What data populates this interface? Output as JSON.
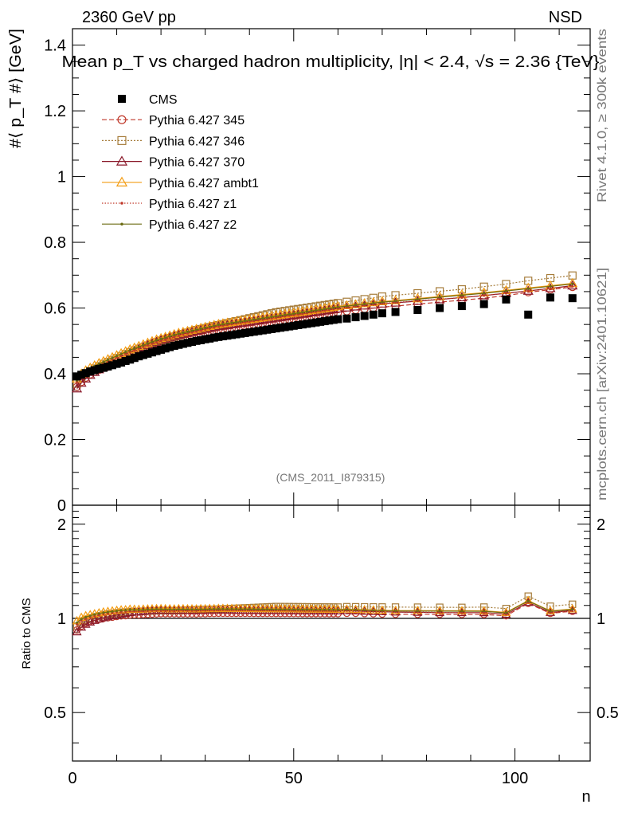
{
  "header": {
    "left": "2360 GeV pp",
    "right": "NSD",
    "title": "Mean p_T vs charged hadron multiplicity, |η| < 2.4, √s = 2.36 {TeV}",
    "analysis_id": "(CMS_2011_I879315)",
    "side_label_top": "Rivet 4.1.0, ≥ 300k events",
    "side_label_bottom": "mcplots.cern.ch [arXiv:2401.10621]"
  },
  "chart_data": [
    {
      "id": "main",
      "type": "scatter",
      "ylabel": "#⟨ p_T #⟩ [GeV]",
      "ylim": [
        0,
        1.45
      ],
      "xlim": [
        0,
        117
      ],
      "yticks": [
        0,
        0.2,
        0.4,
        0.6,
        0.8,
        1,
        1.2,
        1.4
      ],
      "ytick_labels": [
        "0",
        "0.2",
        "0.4",
        "0.6",
        "0.8",
        "1",
        "1.2",
        "1.4"
      ],
      "x": [
        1,
        2,
        3,
        4,
        5,
        6,
        7,
        8,
        9,
        10,
        11,
        12,
        13,
        14,
        15,
        16,
        17,
        18,
        19,
        20,
        21,
        22,
        23,
        24,
        25,
        26,
        27,
        28,
        29,
        30,
        31,
        32,
        33,
        34,
        35,
        36,
        37,
        38,
        39,
        40,
        41,
        42,
        43,
        44,
        45,
        46,
        47,
        48,
        49,
        50,
        51,
        52,
        53,
        54,
        55,
        56,
        57,
        58,
        59,
        60,
        62,
        64,
        66,
        68,
        70,
        73,
        78,
        83,
        88,
        93,
        98,
        103,
        108,
        113
      ],
      "series": [
        {
          "name": "CMS",
          "style": "cms",
          "values": [
            0.392,
            0.397,
            0.402,
            0.407,
            0.411,
            0.415,
            0.418,
            0.422,
            0.426,
            0.43,
            0.434,
            0.439,
            0.443,
            0.448,
            0.453,
            0.457,
            0.461,
            0.465,
            0.469,
            0.473,
            0.477,
            0.481,
            0.485,
            0.488,
            0.491,
            0.494,
            0.497,
            0.5,
            0.502,
            0.505,
            0.507,
            0.51,
            0.512,
            0.514,
            0.516,
            0.518,
            0.52,
            0.522,
            0.524,
            0.526,
            0.528,
            0.53,
            0.532,
            0.534,
            0.536,
            0.538,
            0.54,
            0.542,
            0.544,
            0.546,
            0.548,
            0.55,
            0.552,
            0.554,
            0.556,
            0.558,
            0.56,
            0.562,
            0.564,
            0.566,
            0.568,
            0.572,
            0.576,
            0.58,
            0.584,
            0.588,
            0.594,
            0.6,
            0.606,
            0.612,
            0.626,
            0.58,
            0.632,
            0.63
          ]
        },
        {
          "name": "Pythia 6.427 345",
          "style": "p345",
          "values": [
            0.36,
            0.375,
            0.388,
            0.398,
            0.406,
            0.412,
            0.418,
            0.424,
            0.43,
            0.436,
            0.442,
            0.448,
            0.454,
            0.46,
            0.465,
            0.47,
            0.475,
            0.48,
            0.485,
            0.49,
            0.494,
            0.498,
            0.502,
            0.505,
            0.508,
            0.511,
            0.514,
            0.517,
            0.52,
            0.523,
            0.526,
            0.529,
            0.532,
            0.534,
            0.536,
            0.538,
            0.54,
            0.542,
            0.544,
            0.546,
            0.548,
            0.55,
            0.552,
            0.554,
            0.556,
            0.558,
            0.56,
            0.562,
            0.564,
            0.566,
            0.568,
            0.57,
            0.572,
            0.574,
            0.576,
            0.578,
            0.58,
            0.582,
            0.584,
            0.586,
            0.59,
            0.594,
            0.597,
            0.6,
            0.603,
            0.606,
            0.612,
            0.618,
            0.624,
            0.63,
            0.638,
            0.648,
            0.656,
            0.664
          ]
        },
        {
          "name": "Pythia 6.427 346",
          "style": "p346",
          "values": [
            0.37,
            0.386,
            0.398,
            0.408,
            0.416,
            0.423,
            0.43,
            0.436,
            0.442,
            0.448,
            0.454,
            0.46,
            0.466,
            0.471,
            0.476,
            0.481,
            0.486,
            0.491,
            0.496,
            0.501,
            0.505,
            0.509,
            0.513,
            0.517,
            0.521,
            0.525,
            0.529,
            0.533,
            0.536,
            0.539,
            0.542,
            0.545,
            0.548,
            0.551,
            0.554,
            0.557,
            0.56,
            0.563,
            0.566,
            0.569,
            0.572,
            0.575,
            0.578,
            0.581,
            0.584,
            0.587,
            0.589,
            0.591,
            0.593,
            0.595,
            0.597,
            0.599,
            0.601,
            0.603,
            0.605,
            0.607,
            0.609,
            0.611,
            0.613,
            0.615,
            0.619,
            0.623,
            0.627,
            0.631,
            0.635,
            0.639,
            0.645,
            0.651,
            0.657,
            0.665,
            0.673,
            0.683,
            0.691,
            0.699
          ]
        },
        {
          "name": "Pythia 6.427 370",
          "style": "p370",
          "values": [
            0.355,
            0.372,
            0.385,
            0.396,
            0.405,
            0.413,
            0.42,
            0.427,
            0.434,
            0.441,
            0.448,
            0.455,
            0.462,
            0.469,
            0.475,
            0.481,
            0.487,
            0.492,
            0.497,
            0.502,
            0.506,
            0.51,
            0.514,
            0.518,
            0.521,
            0.524,
            0.527,
            0.53,
            0.533,
            0.536,
            0.539,
            0.542,
            0.544,
            0.546,
            0.548,
            0.55,
            0.552,
            0.554,
            0.556,
            0.558,
            0.56,
            0.562,
            0.564,
            0.566,
            0.568,
            0.57,
            0.572,
            0.574,
            0.576,
            0.578,
            0.58,
            0.582,
            0.584,
            0.586,
            0.588,
            0.59,
            0.592,
            0.594,
            0.596,
            0.598,
            0.601,
            0.604,
            0.607,
            0.61,
            0.613,
            0.616,
            0.621,
            0.626,
            0.632,
            0.638,
            0.645,
            0.652,
            0.66,
            0.668
          ]
        },
        {
          "name": "Pythia 6.427 ambt1",
          "style": "ambt1",
          "values": [
            0.385,
            0.4,
            0.41,
            0.418,
            0.425,
            0.432,
            0.438,
            0.444,
            0.45,
            0.456,
            0.462,
            0.468,
            0.474,
            0.479,
            0.484,
            0.489,
            0.494,
            0.499,
            0.504,
            0.508,
            0.512,
            0.516,
            0.52,
            0.524,
            0.527,
            0.53,
            0.533,
            0.536,
            0.539,
            0.542,
            0.545,
            0.548,
            0.551,
            0.553,
            0.555,
            0.557,
            0.559,
            0.561,
            0.563,
            0.565,
            0.567,
            0.569,
            0.571,
            0.573,
            0.575,
            0.577,
            0.579,
            0.581,
            0.583,
            0.585,
            0.587,
            0.589,
            0.591,
            0.593,
            0.595,
            0.597,
            0.599,
            0.601,
            0.603,
            0.605,
            0.608,
            0.611,
            0.614,
            0.617,
            0.62,
            0.623,
            0.629,
            0.635,
            0.641,
            0.647,
            0.654,
            0.661,
            0.668,
            0.675
          ]
        },
        {
          "name": "Pythia 6.427 z1",
          "style": "z1",
          "values": [
            0.375,
            0.39,
            0.401,
            0.41,
            0.418,
            0.425,
            0.431,
            0.437,
            0.443,
            0.449,
            0.455,
            0.461,
            0.467,
            0.472,
            0.477,
            0.482,
            0.487,
            0.492,
            0.496,
            0.5,
            0.504,
            0.508,
            0.512,
            0.516,
            0.52,
            0.523,
            0.526,
            0.529,
            0.532,
            0.535,
            0.538,
            0.541,
            0.544,
            0.547,
            0.549,
            0.551,
            0.553,
            0.555,
            0.557,
            0.559,
            0.561,
            0.563,
            0.565,
            0.567,
            0.569,
            0.571,
            0.573,
            0.575,
            0.577,
            0.579,
            0.581,
            0.583,
            0.585,
            0.587,
            0.589,
            0.591,
            0.593,
            0.595,
            0.597,
            0.599,
            0.602,
            0.605,
            0.608,
            0.611,
            0.614,
            0.617,
            0.622,
            0.627,
            0.632,
            0.638,
            0.645,
            0.652,
            0.659,
            0.666
          ]
        },
        {
          "name": "Pythia 6.427 z2",
          "style": "z2",
          "values": [
            0.38,
            0.395,
            0.406,
            0.415,
            0.423,
            0.43,
            0.436,
            0.442,
            0.448,
            0.454,
            0.46,
            0.466,
            0.472,
            0.477,
            0.482,
            0.487,
            0.492,
            0.497,
            0.502,
            0.506,
            0.51,
            0.514,
            0.518,
            0.522,
            0.525,
            0.528,
            0.531,
            0.534,
            0.537,
            0.54,
            0.543,
            0.546,
            0.549,
            0.551,
            0.553,
            0.555,
            0.557,
            0.559,
            0.561,
            0.563,
            0.565,
            0.567,
            0.569,
            0.571,
            0.573,
            0.575,
            0.577,
            0.579,
            0.581,
            0.583,
            0.585,
            0.587,
            0.589,
            0.591,
            0.593,
            0.595,
            0.597,
            0.599,
            0.601,
            0.603,
            0.606,
            0.609,
            0.612,
            0.615,
            0.618,
            0.621,
            0.627,
            0.633,
            0.639,
            0.645,
            0.652,
            0.659,
            0.666,
            0.673
          ]
        }
      ]
    },
    {
      "id": "ratio",
      "type": "line",
      "ylabel": "Ratio to CMS",
      "xlabel": "n",
      "ylim": [
        0.35,
        2.3
      ],
      "xlim": [
        0,
        117
      ],
      "yticks": [
        0.5,
        1,
        2
      ],
      "ytick_labels": [
        "0.5",
        "1",
        "2"
      ],
      "xticks": [
        0,
        50,
        100
      ],
      "xtick_labels": [
        "0",
        "50",
        "100"
      ],
      "reference_line": 1
    }
  ]
}
